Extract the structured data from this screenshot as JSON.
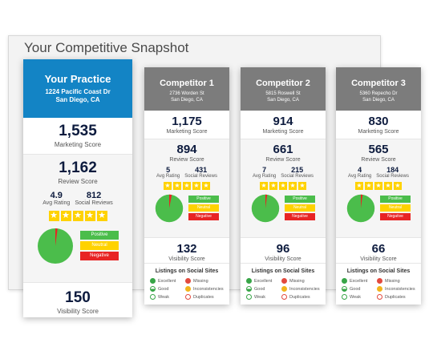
{
  "page": {
    "title": "Your Competitive Snapshot"
  },
  "colors": {
    "practice_header": "#1384c5",
    "competitor_header": "#7c7c7c",
    "positive": "#4bbd4b",
    "neutral": "#ffd200",
    "negative": "#e82424",
    "star": "#ffd200"
  },
  "sentiment_labels": {
    "positive": "Positive",
    "neutral": "Neutral",
    "negative": "Negative"
  },
  "labels": {
    "marketing": "Marketing Score",
    "review": "Review Score",
    "avg_rating": "Avg Rating",
    "social_reviews": "Social Reviews",
    "visibility": "Visibility Score",
    "listings": "Listings on Social Sites"
  },
  "listing_legend": {
    "excellent": "Excellent",
    "missing": "Missing",
    "good": "Good",
    "inconsistencies": "Inconsistencies",
    "weak": "Weak",
    "duplicates": "Duplicates"
  },
  "practice": {
    "name": "Your Practice",
    "address1": "1224 Pacific Coast Dr",
    "address2": "San Diego, CA",
    "marketing_score": "1,535",
    "review_score": "1,162",
    "avg_rating": "4.9",
    "social_reviews": "812",
    "stars": 5,
    "visibility_score": "150",
    "sentiment": {
      "positive": 0.98,
      "neutral": 0.0,
      "negative": 0.02
    }
  },
  "competitors": [
    {
      "name": "Competitor 1",
      "address1": "2736 Worden St",
      "address2": "San Diego, CA",
      "marketing_score": "1,175",
      "review_score": "894",
      "avg_rating": "5",
      "social_reviews": "431",
      "stars": 5,
      "visibility_score": "132",
      "sentiment": {
        "positive": 0.97,
        "neutral": 0.0,
        "negative": 0.03
      }
    },
    {
      "name": "Competitor 2",
      "address1": "5815 Roswell St",
      "address2": "San Diego, CA",
      "marketing_score": "914",
      "review_score": "661",
      "avg_rating": "7",
      "social_reviews": "215",
      "stars": 5,
      "visibility_score": "96",
      "sentiment": {
        "positive": 0.98,
        "neutral": 0.0,
        "negative": 0.02
      }
    },
    {
      "name": "Competitor 3",
      "address1": "5360 Repecho Dr",
      "address2": "San Diego, CA",
      "marketing_score": "830",
      "review_score": "565",
      "avg_rating": "4",
      "social_reviews": "184",
      "stars": 5,
      "visibility_score": "66",
      "sentiment": {
        "positive": 0.98,
        "neutral": 0.0,
        "negative": 0.02
      }
    }
  ]
}
